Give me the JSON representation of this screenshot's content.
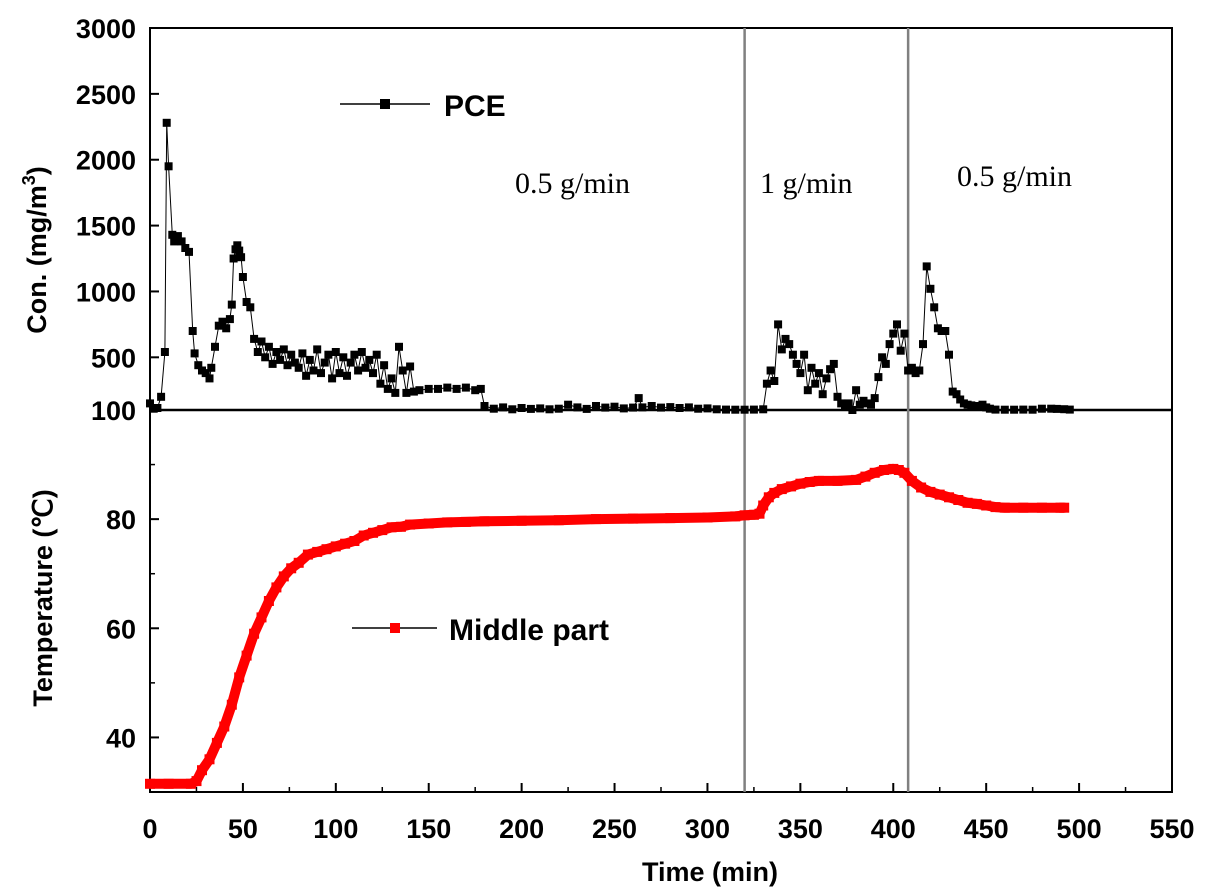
{
  "chart_data": [
    {
      "type": "scatter",
      "panel": "top",
      "ylabel_main": "Con. (mg/m",
      "ylabel_sup": "3",
      "ylabel_tail": ")",
      "ylim": [
        100,
        3000
      ],
      "yticks": [
        100,
        500,
        1000,
        1500,
        2000,
        2500,
        3000
      ],
      "ytick_labels": [
        "100",
        "500",
        "1000",
        "1500",
        "2000",
        "2500",
        "3000"
      ],
      "legend": "top-left",
      "color": "#000000",
      "series": [
        {
          "name": "PCE",
          "points": [
            [
              0,
              150
            ],
            [
              2,
              110
            ],
            [
              4,
              115
            ],
            [
              6,
              200
            ],
            [
              8,
              540
            ],
            [
              9,
              2280
            ],
            [
              10,
              1950
            ],
            [
              12,
              1430
            ],
            [
              13,
              1380
            ],
            [
              15,
              1420
            ],
            [
              17,
              1380
            ],
            [
              19,
              1330
            ],
            [
              21,
              1300
            ],
            [
              23,
              700
            ],
            [
              24,
              530
            ],
            [
              26,
              440
            ],
            [
              28,
              400
            ],
            [
              30,
              380
            ],
            [
              32,
              340
            ],
            [
              33,
              420
            ],
            [
              35,
              580
            ],
            [
              37,
              740
            ],
            [
              39,
              770
            ],
            [
              41,
              720
            ],
            [
              43,
              790
            ],
            [
              44,
              900
            ],
            [
              45,
              1250
            ],
            [
              46,
              1320
            ],
            [
              47,
              1350
            ],
            [
              48,
              1310
            ],
            [
              49,
              1260
            ],
            [
              50,
              1110
            ],
            [
              52,
              920
            ],
            [
              54,
              880
            ],
            [
              56,
              640
            ],
            [
              58,
              540
            ],
            [
              60,
              620
            ],
            [
              62,
              500
            ],
            [
              64,
              580
            ],
            [
              66,
              450
            ],
            [
              68,
              540
            ],
            [
              70,
              480
            ],
            [
              72,
              560
            ],
            [
              74,
              440
            ],
            [
              76,
              520
            ],
            [
              78,
              460
            ],
            [
              80,
              420
            ],
            [
              82,
              530
            ],
            [
              84,
              360
            ],
            [
              86,
              480
            ],
            [
              88,
              400
            ],
            [
              90,
              560
            ],
            [
              92,
              380
            ],
            [
              94,
              460
            ],
            [
              96,
              520
            ],
            [
              98,
              340
            ],
            [
              100,
              540
            ],
            [
              102,
              380
            ],
            [
              104,
              500
            ],
            [
              106,
              360
            ],
            [
              108,
              460
            ],
            [
              110,
              520
            ],
            [
              112,
              400
            ],
            [
              114,
              540
            ],
            [
              116,
              420
            ],
            [
              118,
              480
            ],
            [
              120,
              380
            ],
            [
              122,
              520
            ],
            [
              124,
              300
            ],
            [
              126,
              440
            ],
            [
              128,
              260
            ],
            [
              130,
              340
            ],
            [
              132,
              230
            ],
            [
              134,
              580
            ],
            [
              136,
              400
            ],
            [
              138,
              230
            ],
            [
              140,
              430
            ],
            [
              142,
              240
            ],
            [
              145,
              250
            ],
            [
              150,
              260
            ],
            [
              155,
              260
            ],
            [
              160,
              270
            ],
            [
              165,
              260
            ],
            [
              170,
              270
            ],
            [
              175,
              250
            ],
            [
              178,
              260
            ],
            [
              180,
              130
            ],
            [
              185,
              110
            ],
            [
              190,
              120
            ],
            [
              195,
              105
            ],
            [
              200,
              115
            ],
            [
              205,
              108
            ],
            [
              210,
              112
            ],
            [
              215,
              105
            ],
            [
              220,
              110
            ],
            [
              225,
              140
            ],
            [
              230,
              120
            ],
            [
              235,
              108
            ],
            [
              240,
              130
            ],
            [
              245,
              118
            ],
            [
              250,
              125
            ],
            [
              255,
              112
            ],
            [
              260,
              118
            ],
            [
              263,
              190
            ],
            [
              265,
              120
            ],
            [
              270,
              130
            ],
            [
              275,
              118
            ],
            [
              280,
              122
            ],
            [
              285,
              115
            ],
            [
              290,
              120
            ],
            [
              295,
              110
            ],
            [
              300,
              112
            ],
            [
              305,
              105
            ],
            [
              310,
              103
            ],
            [
              315,
              102
            ],
            [
              320,
              102
            ],
            [
              325,
              103
            ],
            [
              330,
              105
            ],
            [
              332,
              300
            ],
            [
              334,
              400
            ],
            [
              336,
              320
            ],
            [
              338,
              750
            ],
            [
              340,
              560
            ],
            [
              342,
              640
            ],
            [
              344,
              600
            ],
            [
              346,
              520
            ],
            [
              348,
              450
            ],
            [
              350,
              380
            ],
            [
              352,
              520
            ],
            [
              354,
              250
            ],
            [
              356,
              420
            ],
            [
              358,
              300
            ],
            [
              360,
              380
            ],
            [
              362,
              220
            ],
            [
              364,
              340
            ],
            [
              366,
              410
            ],
            [
              368,
              450
            ],
            [
              370,
              200
            ],
            [
              372,
              150
            ],
            [
              374,
              130
            ],
            [
              376,
              150
            ],
            [
              378,
              100
            ],
            [
              380,
              250
            ],
            [
              382,
              140
            ],
            [
              384,
              170
            ],
            [
              386,
              150
            ],
            [
              388,
              140
            ],
            [
              390,
              190
            ],
            [
              392,
              350
            ],
            [
              394,
              500
            ],
            [
              396,
              450
            ],
            [
              398,
              600
            ],
            [
              400,
              680
            ],
            [
              402,
              750
            ],
            [
              404,
              550
            ],
            [
              406,
              680
            ],
            [
              408,
              400
            ],
            [
              410,
              420
            ],
            [
              412,
              380
            ],
            [
              414,
              400
            ],
            [
              416,
              600
            ],
            [
              418,
              1190
            ],
            [
              420,
              1020
            ],
            [
              422,
              880
            ],
            [
              424,
              720
            ],
            [
              426,
              700
            ],
            [
              428,
              700
            ],
            [
              430,
              520
            ],
            [
              432,
              240
            ],
            [
              434,
              220
            ],
            [
              436,
              180
            ],
            [
              438,
              150
            ],
            [
              440,
              140
            ],
            [
              442,
              135
            ],
            [
              444,
              130
            ],
            [
              446,
              125
            ],
            [
              448,
              140
            ],
            [
              450,
              120
            ],
            [
              452,
              110
            ],
            [
              455,
              103
            ],
            [
              460,
              102
            ],
            [
              465,
              102
            ],
            [
              470,
              103
            ],
            [
              475,
              102
            ],
            [
              480,
              110
            ],
            [
              485,
              110
            ],
            [
              488,
              108
            ],
            [
              492,
              106
            ],
            [
              495,
              103
            ]
          ]
        }
      ]
    },
    {
      "type": "line",
      "panel": "bottom",
      "ylabel": "Temperature (℃)",
      "ylim": [
        30,
        100
      ],
      "yticks": [
        40,
        60,
        80
      ],
      "ytick_labels": [
        "40",
        "60",
        "80"
      ],
      "legend": "center-left",
      "color": "#ff0000",
      "series": [
        {
          "name": "Middle part",
          "points": [
            [
              0,
              31.5
            ],
            [
              10,
              31.5
            ],
            [
              22,
              31.5
            ],
            [
              25,
              32
            ],
            [
              28,
              34
            ],
            [
              32,
              36
            ],
            [
              36,
              39
            ],
            [
              40,
              42
            ],
            [
              44,
              46
            ],
            [
              48,
              51
            ],
            [
              52,
              55
            ],
            [
              56,
              59
            ],
            [
              60,
              62
            ],
            [
              64,
              65
            ],
            [
              68,
              67.5
            ],
            [
              72,
              69.5
            ],
            [
              76,
              71
            ],
            [
              80,
              72
            ],
            [
              85,
              73.5
            ],
            [
              90,
              74
            ],
            [
              95,
              74.5
            ],
            [
              100,
              75
            ],
            [
              105,
              75.5
            ],
            [
              110,
              76
            ],
            [
              115,
              77
            ],
            [
              120,
              77.5
            ],
            [
              125,
              78
            ],
            [
              130,
              78.5
            ],
            [
              135,
              78.6
            ],
            [
              140,
              79
            ],
            [
              150,
              79.2
            ],
            [
              160,
              79.4
            ],
            [
              170,
              79.5
            ],
            [
              180,
              79.6
            ],
            [
              200,
              79.7
            ],
            [
              220,
              79.8
            ],
            [
              240,
              80
            ],
            [
              260,
              80.1
            ],
            [
              280,
              80.2
            ],
            [
              300,
              80.3
            ],
            [
              315,
              80.5
            ],
            [
              320,
              80.7
            ],
            [
              325,
              80.8
            ],
            [
              328,
              81
            ],
            [
              330,
              82.5
            ],
            [
              333,
              84
            ],
            [
              336,
              84.8
            ],
            [
              340,
              85.5
            ],
            [
              345,
              86
            ],
            [
              350,
              86.5
            ],
            [
              355,
              86.8
            ],
            [
              360,
              87
            ],
            [
              370,
              87
            ],
            [
              380,
              87.2
            ],
            [
              385,
              87.8
            ],
            [
              390,
              88.5
            ],
            [
              395,
              89
            ],
            [
              400,
              89.2
            ],
            [
              403,
              89
            ],
            [
              406,
              88.5
            ],
            [
              410,
              87
            ],
            [
              415,
              85.8
            ],
            [
              420,
              85
            ],
            [
              425,
              84.5
            ],
            [
              430,
              84
            ],
            [
              435,
              83.5
            ],
            [
              440,
              83
            ],
            [
              445,
              82.8
            ],
            [
              450,
              82.5
            ],
            [
              455,
              82.2
            ],
            [
              460,
              82.1
            ],
            [
              470,
              82.1
            ],
            [
              480,
              82.1
            ],
            [
              490,
              82.1
            ],
            [
              492,
              82.1
            ]
          ]
        }
      ]
    },
    {
      "type": "axis",
      "panel": "shared-x",
      "xlabel": "Time (min)",
      "xlim": [
        0,
        550
      ],
      "xticks": [
        0,
        50,
        100,
        150,
        200,
        250,
        300,
        350,
        400,
        450,
        500,
        550
      ],
      "xtick_labels": [
        "0",
        "50",
        "100",
        "150",
        "200",
        "250",
        "300",
        "350",
        "400",
        "450",
        "500",
        "550"
      ],
      "vlines": [
        320,
        408
      ],
      "vline_color": "#808080",
      "annotations": [
        "0.5 g/min",
        "1 g/min",
        "0.5 g/min"
      ]
    }
  ]
}
